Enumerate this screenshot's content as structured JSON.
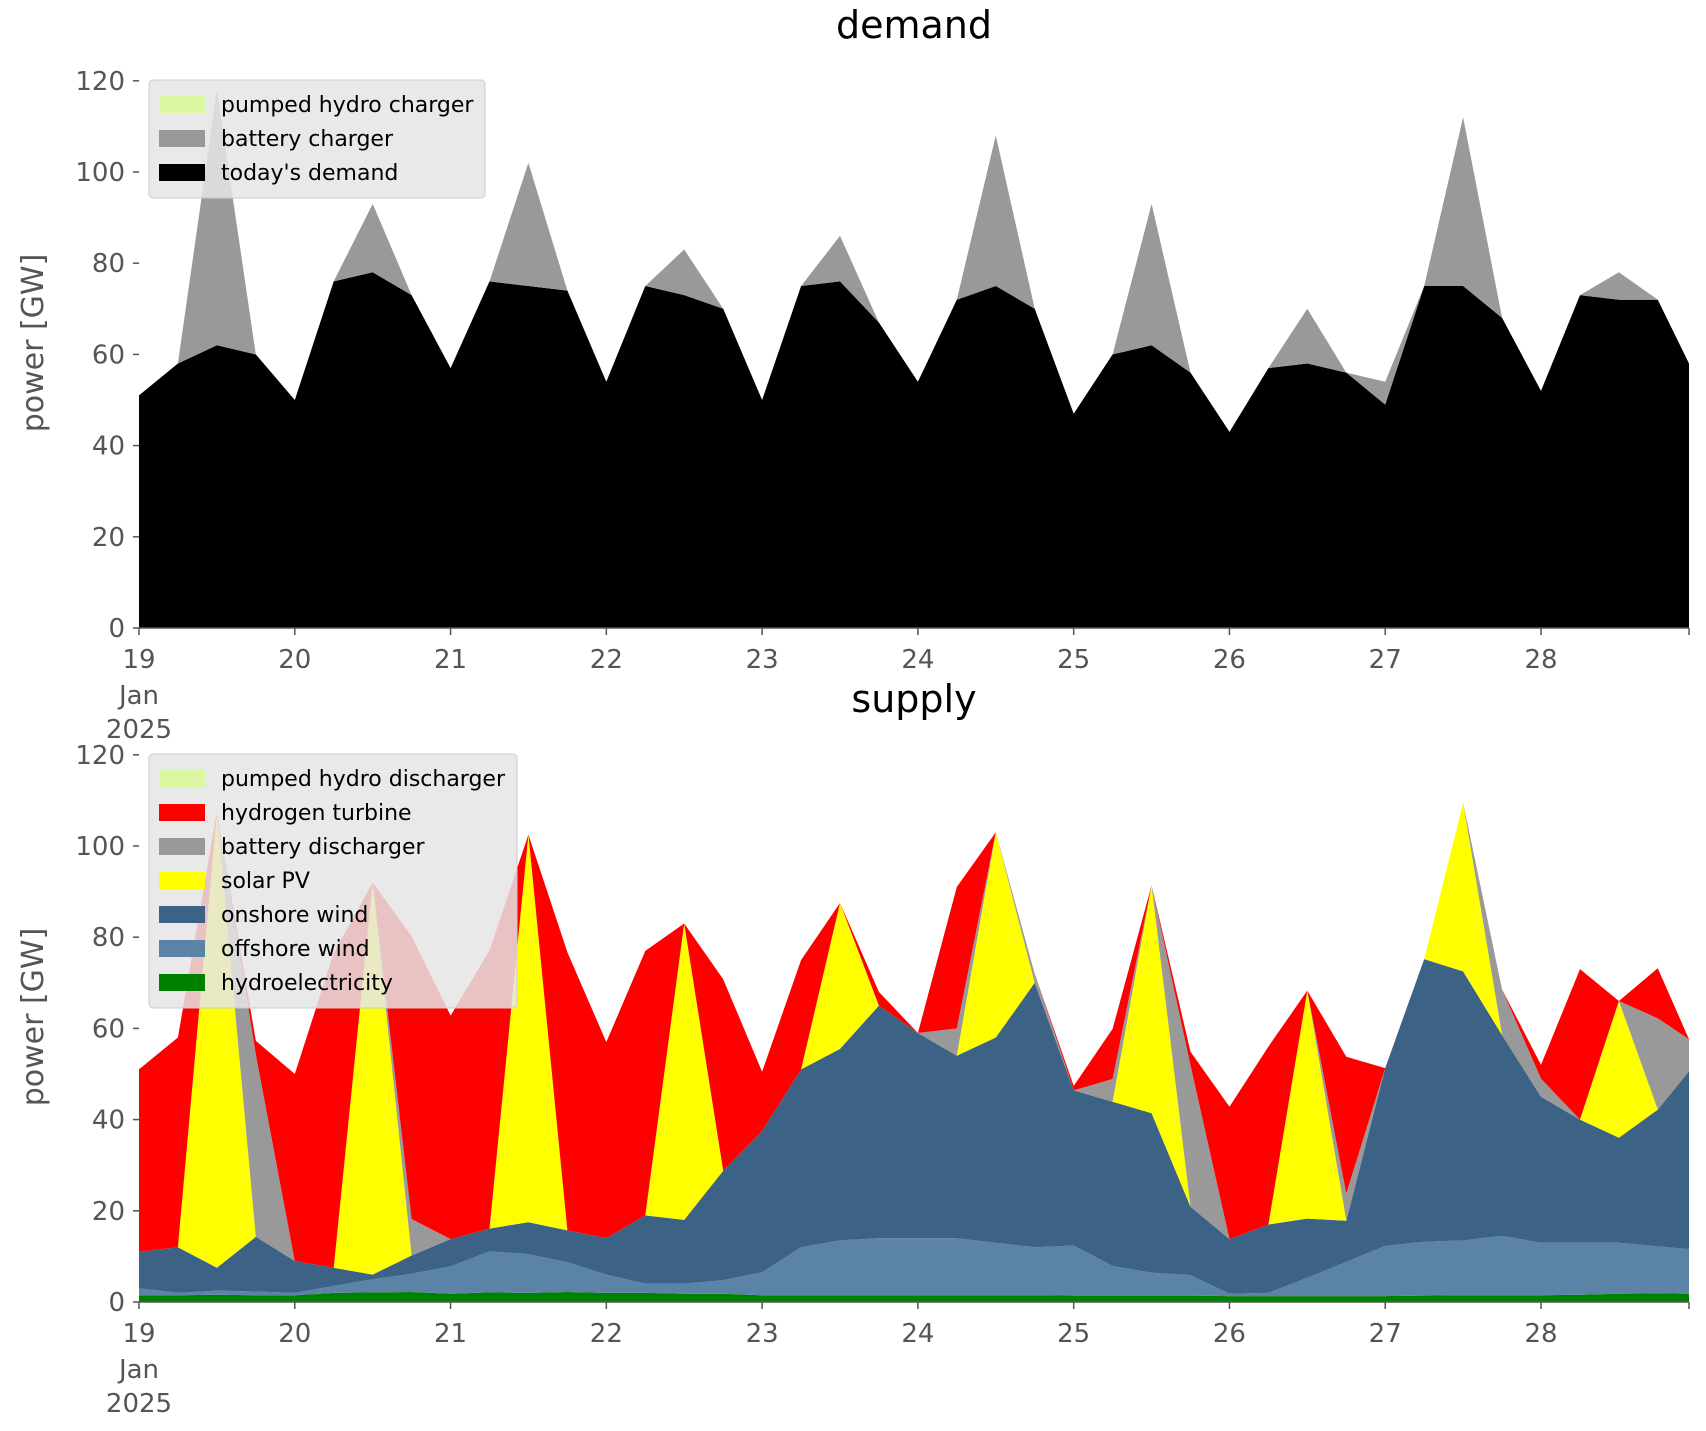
{
  "chart_data": [
    {
      "id": "demand",
      "type": "area",
      "stacked": true,
      "title": "demand",
      "xlabel": "",
      "ylabel": "power [GW]",
      "x": [
        19,
        19.25,
        19.5,
        19.75,
        20,
        20.25,
        20.5,
        20.75,
        21,
        21.25,
        21.5,
        21.75,
        22,
        22.25,
        22.5,
        22.75,
        23,
        23.25,
        23.5,
        23.75,
        24,
        24.25,
        24.5,
        24.75,
        25,
        25.25,
        25.5,
        25.75,
        26,
        26.25,
        26.5,
        26.75,
        27,
        27.25,
        27.5,
        27.75,
        28,
        28.25,
        28.5,
        28.75,
        28.95
      ],
      "xlim": [
        19,
        28.95
      ],
      "ylim": [
        0,
        125
      ],
      "x_ticks": [
        {
          "value": 19,
          "label": "19"
        },
        {
          "value": 20,
          "label": "20"
        },
        {
          "value": 21,
          "label": "21"
        },
        {
          "value": 22,
          "label": "22"
        },
        {
          "value": 23,
          "label": "23"
        },
        {
          "value": 24,
          "label": "24"
        },
        {
          "value": 25,
          "label": "25"
        },
        {
          "value": 26,
          "label": "26"
        },
        {
          "value": 27,
          "label": "27"
        },
        {
          "value": 28,
          "label": "28"
        }
      ],
      "x_sub_labels": [
        "Jan",
        "2025"
      ],
      "y_ticks": [
        0,
        20,
        40,
        60,
        80,
        100,
        120
      ],
      "grid": false,
      "legend_position": "top-left",
      "series": [
        {
          "name": "today's demand",
          "color": "#000000",
          "values": [
            51,
            58,
            62,
            60,
            50,
            76,
            78,
            73,
            57,
            76,
            75,
            74,
            54,
            75,
            73,
            70,
            50,
            75,
            76,
            67,
            54,
            72,
            75,
            70,
            47,
            60,
            62,
            56,
            43,
            57,
            58,
            56,
            49,
            75,
            75,
            68,
            52,
            73,
            72,
            72,
            58
          ]
        },
        {
          "name": "battery charger",
          "color": "#999999",
          "values": [
            0,
            0,
            56,
            0,
            0,
            0,
            15,
            0,
            0,
            0,
            27,
            0,
            0,
            0,
            10,
            0,
            0,
            0,
            10,
            0,
            0,
            0,
            33,
            0,
            0,
            0,
            31,
            0,
            0,
            0,
            12,
            0,
            5,
            0,
            37,
            0,
            0,
            0,
            6,
            0,
            0
          ]
        },
        {
          "name": "pumped hydro charger",
          "color": "#dcf7a2",
          "values": [
            0,
            0,
            0,
            0,
            0,
            0,
            0,
            0,
            0,
            0,
            0,
            0,
            0,
            0,
            0,
            0,
            0,
            0,
            0,
            0,
            0,
            0,
            0,
            0,
            0,
            0,
            0,
            0,
            0,
            0,
            0,
            0,
            0,
            0,
            0,
            0,
            0,
            0,
            0,
            0,
            0
          ]
        }
      ]
    },
    {
      "id": "supply",
      "type": "area",
      "stacked": true,
      "title": "supply",
      "xlabel": "",
      "ylabel": "power [GW]",
      "x": [
        19,
        19.25,
        19.5,
        19.75,
        20,
        20.25,
        20.5,
        20.75,
        21,
        21.25,
        21.5,
        21.75,
        22,
        22.25,
        22.5,
        22.75,
        23,
        23.25,
        23.5,
        23.75,
        24,
        24.25,
        24.5,
        24.75,
        25,
        25.25,
        25.5,
        25.75,
        26,
        26.25,
        26.5,
        26.75,
        27,
        27.25,
        27.5,
        27.75,
        28,
        28.25,
        28.5,
        28.75,
        28.95
      ],
      "xlim": [
        19,
        28.95
      ],
      "ylim": [
        0,
        125
      ],
      "x_ticks": [
        {
          "value": 19,
          "label": "19"
        },
        {
          "value": 20,
          "label": "20"
        },
        {
          "value": 21,
          "label": "21"
        },
        {
          "value": 22,
          "label": "22"
        },
        {
          "value": 23,
          "label": "23"
        },
        {
          "value": 24,
          "label": "24"
        },
        {
          "value": 25,
          "label": "25"
        },
        {
          "value": 26,
          "label": "26"
        },
        {
          "value": 27,
          "label": "27"
        },
        {
          "value": 28,
          "label": "28"
        }
      ],
      "x_sub_labels": [
        "Jan",
        "2025"
      ],
      "y_ticks": [
        0,
        20,
        40,
        60,
        80,
        100,
        120
      ],
      "grid": false,
      "legend_position": "top-left",
      "series": [
        {
          "name": "hydroelectricity",
          "color": "#008000",
          "values": [
            1.5,
            1.5,
            1.6,
            1.5,
            1.5,
            2.0,
            2.1,
            2.2,
            1.8,
            2.1,
            2.0,
            2.2,
            2.0,
            2.0,
            1.8,
            1.8,
            1.5,
            1.5,
            1.5,
            1.5,
            1.5,
            1.5,
            1.5,
            1.5,
            1.4,
            1.4,
            1.4,
            1.4,
            1.3,
            1.3,
            1.3,
            1.3,
            1.3,
            1.4,
            1.5,
            1.5,
            1.5,
            1.6,
            1.8,
            1.9,
            1.8
          ]
        },
        {
          "name": "offshore wind",
          "color": "#5b83a5",
          "values": [
            1.5,
            0.5,
            0.9,
            0.8,
            0.5,
            1.5,
            2.9,
            4.0,
            6.0,
            9.0,
            8.5,
            6.5,
            4.0,
            2.0,
            2.2,
            3.0,
            5.0,
            10.5,
            12.0,
            12.5,
            12.5,
            12.5,
            11.5,
            10.5,
            11.0,
            6.5,
            5.0,
            4.5,
            0.5,
            0.7,
            4.0,
            7.5,
            11.0,
            11.8,
            12.0,
            13.0,
            11.5,
            11.4,
            11.2,
            10.3,
            9.8
          ]
        },
        {
          "name": "onshore wind",
          "color": "#3c6385",
          "values": [
            8,
            10,
            5,
            12,
            7,
            4,
            1,
            4,
            6,
            5,
            7,
            7,
            8,
            15,
            14,
            24,
            31,
            39,
            42,
            51,
            45,
            40,
            45,
            58,
            34,
            36,
            35,
            15,
            12,
            15,
            13,
            9,
            39,
            62,
            59,
            44,
            32,
            27,
            23,
            30,
            39
          ]
        },
        {
          "name": "solar PV",
          "color": "#ffff00",
          "values": [
            0,
            0,
            100,
            0,
            0,
            0,
            86,
            0,
            0,
            0,
            85,
            0,
            0,
            0,
            65,
            0,
            0,
            0,
            32,
            0,
            0,
            0,
            45,
            0,
            0,
            0,
            50,
            0,
            0,
            0,
            50,
            0,
            0,
            0,
            37,
            0,
            0,
            0,
            30,
            0,
            0
          ]
        },
        {
          "name": "battery discharger",
          "color": "#999999",
          "values": [
            0,
            0,
            0,
            40,
            0,
            0,
            0,
            8,
            0,
            0,
            0,
            0,
            0,
            0,
            0,
            0,
            0,
            0,
            0,
            0,
            0,
            6,
            0,
            2,
            0,
            5,
            0,
            31,
            0,
            0,
            0,
            6,
            0,
            0,
            0,
            10,
            4,
            0,
            0,
            20,
            7
          ]
        },
        {
          "name": "hydrogen turbine",
          "color": "#ff0000",
          "values": [
            40,
            46,
            0,
            3,
            41,
            69,
            0,
            62,
            49,
            61,
            0,
            61,
            43,
            58,
            0,
            42,
            13,
            24,
            0,
            3,
            0,
            31,
            0,
            0,
            1,
            11,
            0,
            3,
            29,
            39,
            0,
            30,
            0,
            0,
            0,
            0,
            3,
            33,
            0,
            11,
            0
          ]
        },
        {
          "name": "pumped hydro discharger",
          "color": "#dcf7a2",
          "values": [
            0,
            0,
            0,
            0,
            0,
            0,
            0,
            0,
            0,
            0,
            0,
            0,
            0,
            0,
            0,
            0,
            0,
            0,
            0,
            0,
            0,
            0,
            0,
            0,
            0,
            0,
            0,
            0,
            0,
            0,
            0,
            0,
            0,
            0,
            0,
            0,
            0,
            0,
            0,
            0,
            0
          ]
        }
      ]
    }
  ]
}
